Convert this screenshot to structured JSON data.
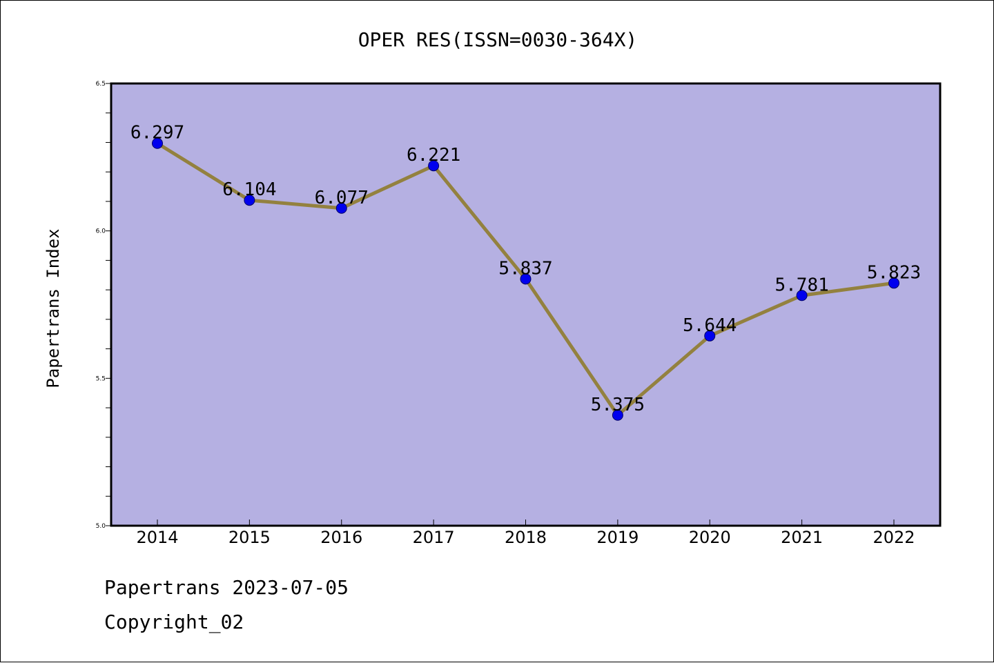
{
  "chart_data": {
    "type": "line",
    "title": "OPER RES(ISSN=0030-364X)",
    "xlabel": "",
    "ylabel": "Papertrans Index",
    "categories": [
      "2014",
      "2015",
      "2016",
      "2017",
      "2018",
      "2019",
      "2020",
      "2021",
      "2022"
    ],
    "series": [
      {
        "values": [
          6.297,
          6.104,
          6.077,
          6.221,
          5.837,
          5.375,
          5.644,
          5.781,
          5.823
        ],
        "labels": [
          "6.297",
          "6.104",
          "6.077",
          "6.221",
          "5.837",
          "5.375",
          "5.644",
          "5.781",
          "5.823"
        ]
      }
    ],
    "ylim": [
      5.0,
      6.5
    ],
    "yticks": [
      "5.0",
      "5.5",
      "6.0",
      "6.5"
    ],
    "yminor_step": 0.1,
    "grid": false,
    "colors": {
      "plot_background": "#b5b0e2",
      "line": "#93813f",
      "marker": "#0000ee",
      "axis": "#000000"
    }
  },
  "footer": {
    "date_line": "Papertrans 2023-07-05",
    "copyright_line": "Copyright_02"
  }
}
